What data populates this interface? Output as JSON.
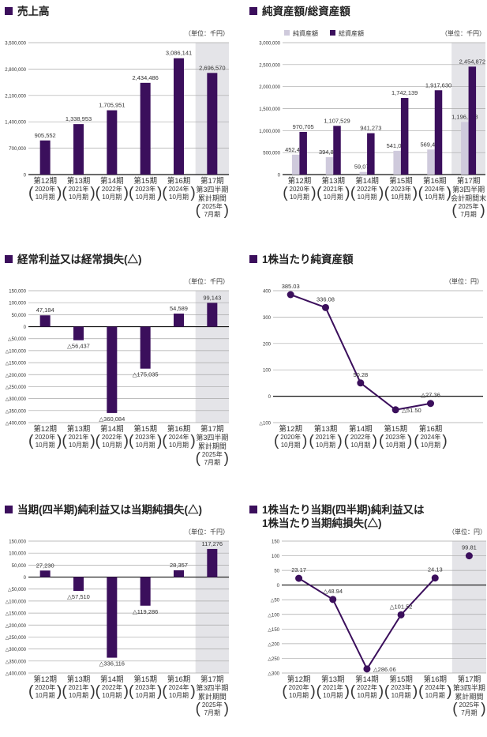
{
  "chart_data": [
    {
      "type": "bar",
      "title": "売上高",
      "unit": "（単位：千円）",
      "ylim": [
        0,
        3500000
      ],
      "yticks": [
        0,
        700000,
        1400000,
        2100000,
        2800000,
        3500000
      ],
      "ytick_labels": [
        "0",
        "700,000",
        "1,400,000",
        "2,100,000",
        "2,800,000",
        "3,500,000"
      ],
      "categories": [
        {
          "name": "第12期",
          "paren": [
            "2020年",
            "10月期"
          ]
        },
        {
          "name": "第13期",
          "paren": [
            "2021年",
            "10月期"
          ]
        },
        {
          "name": "第14期",
          "paren": [
            "2022年",
            "10月期"
          ]
        },
        {
          "name": "第15期",
          "paren": [
            "2023年",
            "10月期"
          ]
        },
        {
          "name": "第16期",
          "paren": [
            "2024年",
            "10月期"
          ]
        },
        {
          "name": "第17期",
          "sub": [
            "第3四半期",
            "累計期間"
          ],
          "paren": [
            "2025年",
            "7月期"
          ]
        }
      ],
      "series": [
        {
          "name": "売上高",
          "color": "#3b0f5c",
          "values": [
            905552,
            1338953,
            1705951,
            2434486,
            3086141,
            2696570
          ],
          "labels": [
            "905,552",
            "1,338,953",
            "1,705,951",
            "2,434,486",
            "3,086,141",
            "2,696,570"
          ]
        }
      ],
      "highlight_last": true
    },
    {
      "type": "bar",
      "title": "純資産額/総資産額",
      "unit": "（単位：千円）",
      "legend": [
        "純資産額",
        "総資産額"
      ],
      "legend_position": "top-left",
      "ylim": [
        0,
        3000000
      ],
      "yticks": [
        0,
        500000,
        1000000,
        1500000,
        2000000,
        2500000,
        3000000
      ],
      "ytick_labels": [
        "0",
        "500,000",
        "1,000,000",
        "1,500,000",
        "2,000,000",
        "2,500,000",
        "3,000,000"
      ],
      "categories": [
        {
          "name": "第12期",
          "paren": [
            "2020年",
            "10月期"
          ]
        },
        {
          "name": "第13期",
          "paren": [
            "2021年",
            "10月期"
          ]
        },
        {
          "name": "第14期",
          "paren": [
            "2022年",
            "10月期"
          ]
        },
        {
          "name": "第15期",
          "paren": [
            "2023年",
            "10月期"
          ]
        },
        {
          "name": "第16期",
          "paren": [
            "2024年",
            "10月期"
          ]
        },
        {
          "name": "第17期",
          "sub": [
            "第3四半期",
            "会計期間末"
          ],
          "paren": [
            "2025年",
            "7月期"
          ]
        }
      ],
      "series": [
        {
          "name": "純資産額",
          "color": "#cfcadc",
          "values": [
            452408,
            394898,
            59079,
            541092,
            569449,
            1196188
          ],
          "labels": [
            "452,408",
            "394,898",
            "59,079",
            "541,092",
            "569,449",
            "1,196,188"
          ]
        },
        {
          "name": "総資産額",
          "color": "#3b0f5c",
          "values": [
            970705,
            1107529,
            941273,
            1742139,
            1917630,
            2454872
          ],
          "labels": [
            "970,705",
            "1,107,529",
            "941,273",
            "1,742,139",
            "1,917,630",
            "2,454,872"
          ]
        }
      ],
      "highlight_last": true
    },
    {
      "type": "bar",
      "title": "経常利益又は経常損失(△)",
      "unit": "（単位：千円）",
      "ylim": [
        -400000,
        150000
      ],
      "yticks": [
        150000,
        100000,
        50000,
        0,
        -50000,
        -100000,
        -150000,
        -200000,
        -250000,
        -300000,
        -350000,
        -400000
      ],
      "ytick_labels": [
        "150,000",
        "100,000",
        "50,000",
        "0",
        "△50,000",
        "△100,000",
        "△150,000",
        "△200,000",
        "△250,000",
        "△300,000",
        "△350,000",
        "△400,000"
      ],
      "categories": [
        {
          "name": "第12期",
          "paren": [
            "2020年",
            "10月期"
          ]
        },
        {
          "name": "第13期",
          "paren": [
            "2021年",
            "10月期"
          ]
        },
        {
          "name": "第14期",
          "paren": [
            "2022年",
            "10月期"
          ]
        },
        {
          "name": "第15期",
          "paren": [
            "2023年",
            "10月期"
          ]
        },
        {
          "name": "第16期",
          "paren": [
            "2024年",
            "10月期"
          ]
        },
        {
          "name": "第17期",
          "sub": [
            "第3四半期",
            "累計期間"
          ],
          "paren": [
            "2025年",
            "7月期"
          ]
        }
      ],
      "series": [
        {
          "name": "経常利益",
          "color": "#3b0f5c",
          "values": [
            47184,
            -56437,
            -360084,
            -175035,
            54589,
            99143
          ],
          "labels": [
            "47,184",
            "△56,437",
            "△360,084",
            "△175,035",
            "54,589",
            "99,143"
          ]
        }
      ],
      "highlight_last": true
    },
    {
      "type": "line",
      "title": "1株当たり純資産額",
      "unit": "（単位：円）",
      "ylim": [
        -100,
        400
      ],
      "yticks": [
        400,
        300,
        200,
        100,
        0,
        -100
      ],
      "ytick_labels": [
        "400",
        "300",
        "200",
        "100",
        "0",
        "△100"
      ],
      "slots": 6,
      "categories": [
        {
          "name": "第12期",
          "paren": [
            "2020年",
            "10月期"
          ]
        },
        {
          "name": "第13期",
          "paren": [
            "2021年",
            "10月期"
          ]
        },
        {
          "name": "第14期",
          "paren": [
            "2022年",
            "10月期"
          ]
        },
        {
          "name": "第15期",
          "paren": [
            "2023年",
            "10月期"
          ]
        },
        {
          "name": "第16期",
          "paren": [
            "2024年",
            "10月期"
          ]
        }
      ],
      "series": [
        {
          "name": "1株当たり純資産額",
          "color": "#3b0f5c",
          "values": [
            385.03,
            336.08,
            50.28,
            -51.5,
            -27.36
          ],
          "labels": [
            "385.03",
            "336.08",
            "50.28",
            "△51.50",
            "△27.36"
          ],
          "connected": [
            true,
            true,
            true,
            true,
            true
          ]
        }
      ],
      "highlight_last": false
    },
    {
      "type": "bar",
      "title": "当期(四半期)純利益又は当期純損失(△)",
      "unit": "（単位：千円）",
      "ylim": [
        -400000,
        150000
      ],
      "yticks": [
        150000,
        100000,
        50000,
        0,
        -50000,
        -100000,
        -150000,
        -200000,
        -250000,
        -300000,
        -350000,
        -400000
      ],
      "ytick_labels": [
        "150,000",
        "100,000",
        "50,000",
        "0",
        "△50,000",
        "△100,000",
        "△150,000",
        "△200,000",
        "△250,000",
        "△300,000",
        "△350,000",
        "△400,000"
      ],
      "categories": [
        {
          "name": "第12期",
          "paren": [
            "2020年",
            "10月期"
          ]
        },
        {
          "name": "第13期",
          "paren": [
            "2021年",
            "10月期"
          ]
        },
        {
          "name": "第14期",
          "paren": [
            "2022年",
            "10月期"
          ]
        },
        {
          "name": "第15期",
          "paren": [
            "2023年",
            "10月期"
          ]
        },
        {
          "name": "第16期",
          "paren": [
            "2024年",
            "10月期"
          ]
        },
        {
          "name": "第17期",
          "sub": [
            "第3四半期",
            "累計期間"
          ],
          "paren": [
            "2025年",
            "7月期"
          ]
        }
      ],
      "series": [
        {
          "name": "当期純利益",
          "color": "#3b0f5c",
          "values": [
            27230,
            -57510,
            -336116,
            -119286,
            28357,
            117276
          ],
          "labels": [
            "27,230",
            "△57,510",
            "△336,116",
            "△119,286",
            "28,357",
            "117,276"
          ]
        }
      ],
      "highlight_last": true
    },
    {
      "type": "line",
      "title": "1株当たり当期(四半期)純利益又は",
      "title2": "1株当たり当期純損失(△)",
      "unit": "（単位：円）",
      "ylim": [
        -300,
        150
      ],
      "yticks": [
        150,
        100,
        50,
        0,
        -50,
        -100,
        -150,
        -200,
        -250,
        -300
      ],
      "ytick_labels": [
        "150",
        "100",
        "50",
        "0",
        "△50",
        "△100",
        "△150",
        "△200",
        "△250",
        "△300"
      ],
      "categories": [
        {
          "name": "第12期",
          "paren": [
            "2020年",
            "10月期"
          ]
        },
        {
          "name": "第13期",
          "paren": [
            "2021年",
            "10月期"
          ]
        },
        {
          "name": "第14期",
          "paren": [
            "2022年",
            "10月期"
          ]
        },
        {
          "name": "第15期",
          "paren": [
            "2023年",
            "10月期"
          ]
        },
        {
          "name": "第16期",
          "paren": [
            "2024年",
            "10月期"
          ]
        },
        {
          "name": "第17期",
          "sub": [
            "第3四半期",
            "累計期間"
          ],
          "paren": [
            "2025年",
            "7月期"
          ]
        }
      ],
      "series": [
        {
          "name": "1株当たり当期純利益",
          "color": "#3b0f5c",
          "values": [
            23.17,
            -48.94,
            -286.06,
            -101.52,
            24.13,
            99.81
          ],
          "labels": [
            "23.17",
            "△48.94",
            "△286.06",
            "△101.52",
            "24.13",
            "99.81"
          ],
          "connected": [
            true,
            true,
            true,
            true,
            true,
            false
          ]
        }
      ],
      "highlight_last": true
    }
  ]
}
